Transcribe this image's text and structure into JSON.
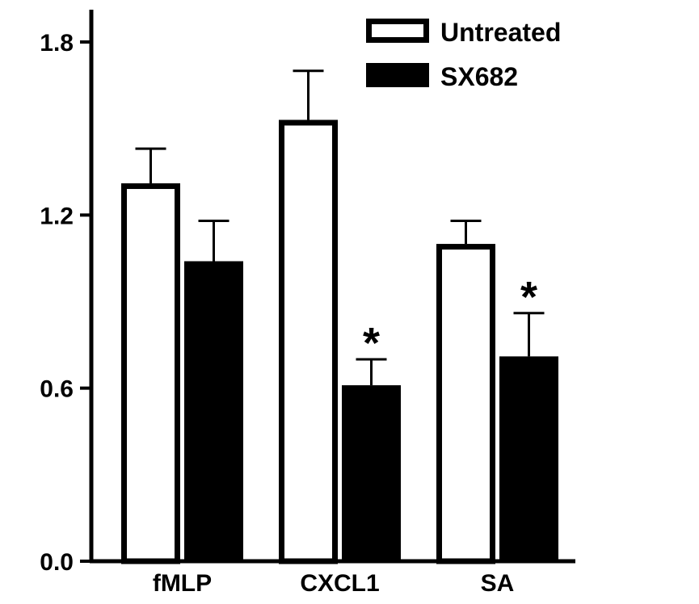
{
  "chart_data": {
    "type": "bar",
    "categories": [
      "fMLP",
      "CXCL1",
      "SA"
    ],
    "series": [
      {
        "name": "Untreated",
        "values": [
          1.31,
          1.53,
          1.1
        ],
        "errors": [
          0.12,
          0.17,
          0.08
        ],
        "fill": "#ffffff",
        "stroke": "#000000"
      },
      {
        "name": "SX682",
        "values": [
          1.04,
          0.61,
          0.71
        ],
        "errors": [
          0.14,
          0.09,
          0.15
        ],
        "fill": "#000000",
        "stroke": "#000000"
      }
    ],
    "significance": [
      {
        "category": 1,
        "series": 1,
        "label": "*"
      },
      {
        "category": 2,
        "series": 1,
        "label": "*"
      }
    ],
    "yticks": [
      "0.0",
      "0.6",
      "1.2",
      "1.8"
    ],
    "ylim": [
      0,
      1.88
    ],
    "title": "",
    "xlabel": "",
    "ylabel": "",
    "legend_position": "top-right",
    "grid": false
  }
}
